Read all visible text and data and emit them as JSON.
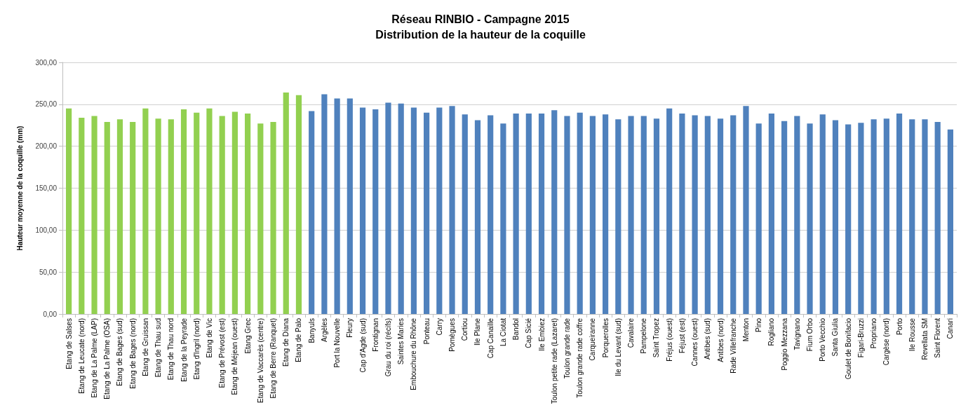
{
  "chart_data": {
    "type": "bar",
    "title": "Réseau RINBIO - Campagne 2015",
    "subtitle": "Distribution de la hauteur de la coquille",
    "ylabel": "Hauteur moyenne de la coquille (mm)",
    "categories": [
      "Etang de Salses",
      "Etang de Leucate (nord)",
      "Etang de La Palme (LAP)",
      "Etang de La Palme (OSA)",
      "Etang de Bages (sud)",
      "Etang de Bages (nord)",
      "Etang de Gruissan",
      "Etang de Thau sud",
      "Etang de Thau nord",
      "Etang de la Peyrade",
      "Etang d'Ingril (nord)",
      "Etang de Vic",
      "Etang de Prévost (est)",
      "Etang de Méjean (ouest)",
      "Etang Grec",
      "Etang de Vaccarès (centre)",
      "Etang de Berre (Ranquet)",
      "Etang de Diana",
      "Etang de Palo",
      "Banyuls",
      "Argèles",
      "Port la Nouvelle",
      "Fleury",
      "Cap d'Agde (sud)",
      "Frontignan",
      "Grau du roi (récifs)",
      "Saintes Maries",
      "Embouchure du Rhône",
      "Ponteau",
      "Carry",
      "Pomègues",
      "Cortiou",
      "Ile Plane",
      "Cap Canaille",
      "La Ciotat",
      "Bandol",
      "Cap Sicié",
      "Ile Embiez",
      "Toulon petite rade (Lazaret)",
      "Toulon grande rade",
      "Toulon grande rade coffre",
      "Carqueiranne",
      "Porquerolles",
      "Ile du Levant (sud)",
      "Cavalaire",
      "Pampelone",
      "Saint Tropez",
      "Fréjus (ouest)",
      "Féjust (est)",
      "Cannes (ouest)",
      "Antibes (sud)",
      "Antibes (nord)",
      "Rade Villefranche",
      "Menton",
      "Pino",
      "Rogliano",
      "Poggio Mezzana",
      "Tavignano",
      "Fium Orbo",
      "Porto Vecchio",
      "Santa Giulia",
      "Goulet de Bonifacio",
      "Figari-Bruzzi",
      "Propriano",
      "Cargèse (nord)",
      "Porto",
      "Ile Rousse",
      "Revellata SM",
      "Saint Florent",
      "Canari"
    ],
    "values": [
      245,
      234,
      236,
      229,
      232,
      229,
      245,
      233,
      232,
      244,
      240,
      245,
      236,
      241,
      239,
      227,
      229,
      264,
      261,
      242,
      262,
      257,
      257,
      246,
      244,
      252,
      251,
      246,
      240,
      246,
      248,
      238,
      231,
      237,
      227,
      239,
      239,
      239,
      243,
      236,
      240,
      236,
      238,
      232,
      236,
      236,
      233,
      245,
      239,
      237,
      236,
      233,
      237,
      248,
      227,
      239,
      230,
      236,
      227,
      238,
      231,
      226,
      228,
      232,
      233,
      239,
      232,
      232,
      229,
      220
    ],
    "colors": [
      "#92d050",
      "#92d050",
      "#92d050",
      "#92d050",
      "#92d050",
      "#92d050",
      "#92d050",
      "#92d050",
      "#92d050",
      "#92d050",
      "#92d050",
      "#92d050",
      "#92d050",
      "#92d050",
      "#92d050",
      "#92d050",
      "#92d050",
      "#92d050",
      "#92d050",
      "#4f81bd",
      "#4f81bd",
      "#4f81bd",
      "#4f81bd",
      "#4f81bd",
      "#4f81bd",
      "#4f81bd",
      "#4f81bd",
      "#4f81bd",
      "#4f81bd",
      "#4f81bd",
      "#4f81bd",
      "#4f81bd",
      "#4f81bd",
      "#4f81bd",
      "#4f81bd",
      "#4f81bd",
      "#4f81bd",
      "#4f81bd",
      "#4f81bd",
      "#4f81bd",
      "#4f81bd",
      "#4f81bd",
      "#4f81bd",
      "#4f81bd",
      "#4f81bd",
      "#4f81bd",
      "#4f81bd",
      "#4f81bd",
      "#4f81bd",
      "#4f81bd",
      "#4f81bd",
      "#4f81bd",
      "#4f81bd",
      "#4f81bd",
      "#4f81bd",
      "#4f81bd",
      "#4f81bd",
      "#4f81bd",
      "#4f81bd",
      "#4f81bd",
      "#4f81bd",
      "#4f81bd",
      "#4f81bd",
      "#4f81bd",
      "#4f81bd",
      "#4f81bd",
      "#4f81bd",
      "#4f81bd",
      "#4f81bd",
      "#4f81bd"
    ],
    "ylim": [
      0,
      300
    ],
    "yticks": [
      {
        "value": 0,
        "label": "0,00"
      },
      {
        "value": 50,
        "label": "50,00"
      },
      {
        "value": 100,
        "label": "100,00"
      },
      {
        "value": 150,
        "label": "150,00"
      },
      {
        "value": 200,
        "label": "200,00"
      },
      {
        "value": 250,
        "label": "250,00"
      },
      {
        "value": 300,
        "label": "300,00"
      }
    ],
    "grid": "y"
  }
}
